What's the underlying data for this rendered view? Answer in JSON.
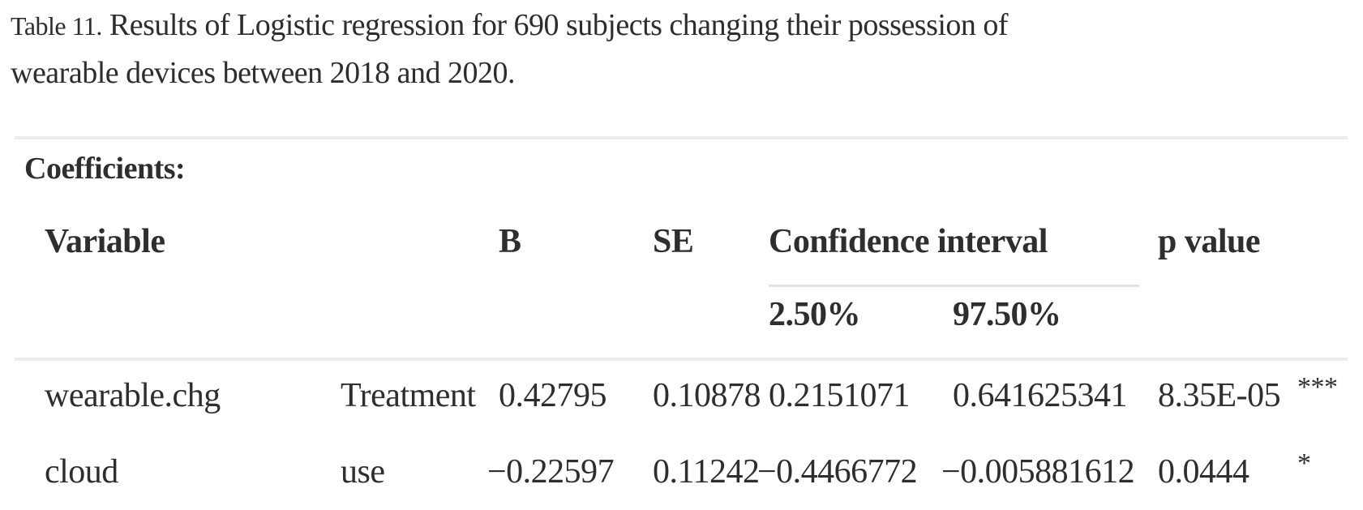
{
  "page": {
    "background": "#ffffff",
    "text_color": "#2e2e2e",
    "rule_color": "#ececec"
  },
  "title": {
    "label": "Table 11.",
    "line1": "Results of Logistic regression for 690 subjects changing their possession of",
    "line2": "wearable devices between 2018 and 2020."
  },
  "section": {
    "heading": "Coefficients:"
  },
  "table": {
    "headers": {
      "variable": "Variable",
      "b": "B",
      "se": "SE",
      "ci": "Confidence interval",
      "p": "p value"
    },
    "ci_subheaders": {
      "low": "2.50%",
      "high": "97.50%"
    },
    "rows": [
      {
        "cells": [
          "wearable.chg",
          "Treatment",
          "0.42795",
          "0.10878",
          "0.2151071",
          "0.641625341",
          "8.35E-05",
          "***"
        ]
      },
      {
        "cells": [
          "cloud",
          "use",
          "−0.22597",
          "0.11242",
          "−0.4466772",
          "−0.005881612",
          "0.0444",
          "*"
        ]
      }
    ]
  }
}
